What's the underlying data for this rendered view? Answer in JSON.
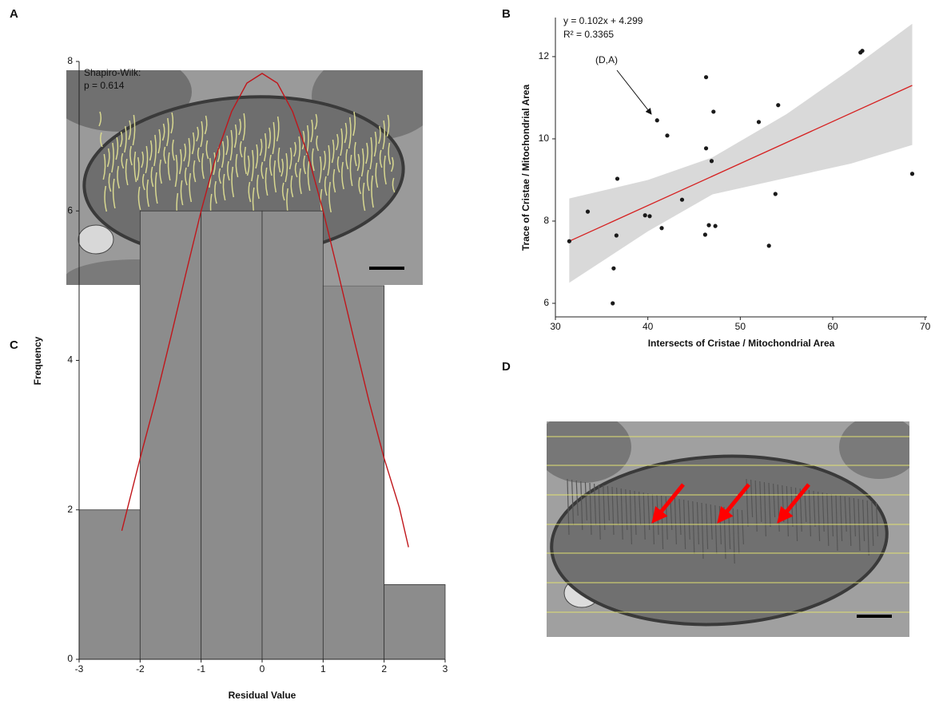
{
  "panel_labels": [
    "A",
    "B",
    "C",
    "D"
  ],
  "chart_data": [
    {
      "type": "scatter",
      "x": [
        31.5,
        33.5,
        36.2,
        36.3,
        36.6,
        36.7,
        39.7,
        40.2,
        41.0,
        41.5,
        42.1,
        43.7,
        46.3,
        46.3,
        46.2,
        46.6,
        46.9,
        47.1,
        47.3,
        52.0,
        53.1,
        53.8,
        54.1,
        63.0,
        63.2,
        68.6
      ],
      "y": [
        7.51,
        8.23,
        6.0,
        6.85,
        7.65,
        9.03,
        8.14,
        8.12,
        10.45,
        7.83,
        10.08,
        8.52,
        11.5,
        9.77,
        7.67,
        7.9,
        9.46,
        10.66,
        7.88,
        10.41,
        7.4,
        8.66,
        10.82,
        12.1,
        12.14,
        9.15
      ],
      "color": "#1a1a1a",
      "fit": {
        "x": [
          31.5,
          68.6
        ],
        "y": [
          7.51,
          11.3
        ],
        "color": "#d62020"
      },
      "band": {
        "x": [
          31.5,
          40,
          47,
          55,
          62,
          68.6
        ],
        "upper": [
          8.55,
          9.0,
          9.55,
          10.6,
          11.7,
          12.8
        ],
        "lower": [
          6.5,
          7.75,
          8.65,
          9.05,
          9.4,
          9.85
        ],
        "color": "#d9d9d9"
      },
      "equation": "y = 0.102x + 4.299",
      "r_squared": "R² = 0.3365",
      "point_label": "(D,A)",
      "x_label": "Intersects of Cristae / Mitochondrial Area",
      "y_label": "Trace of Cristae / Mitochondrial Area",
      "xlim": [
        30,
        70.2
      ],
      "xticks": [
        30,
        40,
        50,
        60,
        70
      ],
      "ylim": [
        5.67,
        12.95
      ],
      "yticks": [
        6,
        8,
        10,
        12
      ]
    },
    {
      "type": "histogram",
      "bins": [
        -3,
        -2,
        -1,
        0,
        1,
        2,
        3
      ],
      "values": [
        2,
        6,
        6,
        6,
        5,
        1
      ],
      "color": "#8c8c8c",
      "curve": {
        "x": [
          -2.3,
          -2.0,
          -1.75,
          -1.5,
          -1.25,
          -1.0,
          -0.75,
          -0.5,
          -0.25,
          0,
          0.25,
          0.5,
          0.75,
          1.0,
          1.25,
          1.5,
          1.75,
          2.0,
          2.25,
          2.4
        ],
        "y": [
          1.72,
          2.69,
          3.46,
          4.3,
          5.16,
          6.0,
          6.75,
          7.33,
          7.71,
          7.84,
          7.71,
          7.33,
          6.75,
          6.0,
          5.16,
          4.3,
          3.46,
          2.69,
          2.03,
          1.5
        ],
        "color": "#c0161b"
      },
      "test_name": "Shapiro-Wilk:",
      "p_value": "p = 0.614",
      "x_label": "Residual Value",
      "y_label": "Frequency",
      "xlim": [
        -3,
        3
      ],
      "xticks": [
        -3,
        -2,
        -1,
        0,
        1,
        2,
        3
      ],
      "ylim": [
        0,
        8
      ],
      "yticks": [
        0,
        2,
        4,
        6,
        8
      ]
    }
  ]
}
